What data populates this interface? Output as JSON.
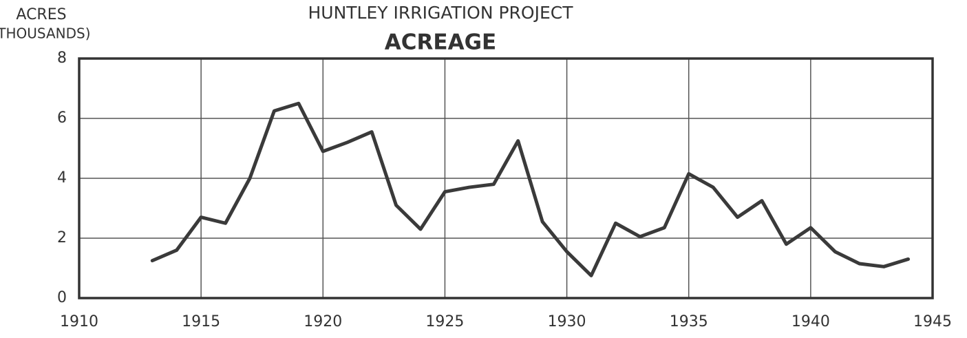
{
  "chart_data": {
    "type": "line",
    "title": "HUNTLEY IRRIGATION PROJECT",
    "subtitle": "ACREAGE",
    "y_label": "ACRES",
    "y_label_unit": "(THOUSANDS)",
    "x": [
      1913,
      1914,
      1915,
      1916,
      1917,
      1918,
      1919,
      1920,
      1921,
      1922,
      1923,
      1924,
      1925,
      1926,
      1927,
      1928,
      1929,
      1930,
      1931,
      1932,
      1933,
      1934,
      1935,
      1936,
      1937,
      1938,
      1939,
      1940,
      1941,
      1942,
      1943,
      1944
    ],
    "series": [
      {
        "name": "Acreage",
        "color": "#3a3a3a",
        "values": [
          1.25,
          1.6,
          2.7,
          2.5,
          4.0,
          6.25,
          6.5,
          4.9,
          5.2,
          5.55,
          3.1,
          2.3,
          3.55,
          3.7,
          3.8,
          5.25,
          2.55,
          1.55,
          0.75,
          2.5,
          2.05,
          2.35,
          4.15,
          3.7,
          2.7,
          3.25,
          1.8,
          2.35,
          1.55,
          1.15,
          1.05,
          1.3
        ]
      }
    ],
    "xlim": [
      1910,
      1945
    ],
    "xticks": [
      1910,
      1915,
      1920,
      1925,
      1930,
      1935,
      1940,
      1945
    ],
    "ylim": [
      0,
      8
    ],
    "yticks": [
      0,
      2,
      4,
      6,
      8
    ],
    "grid": true
  }
}
